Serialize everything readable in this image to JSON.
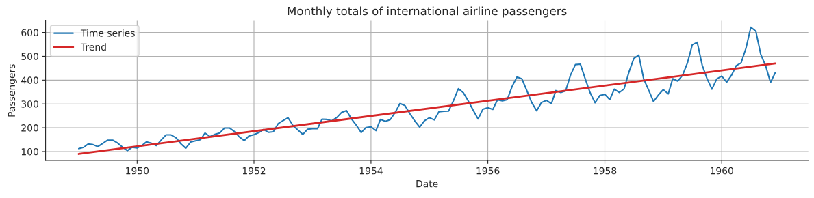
{
  "chart_data": {
    "type": "line",
    "title": "Monthly totals of international airline passengers",
    "xlabel": "Date",
    "ylabel": "Passengers",
    "x": [
      "1949-01",
      "1949-02",
      "1949-03",
      "1949-04",
      "1949-05",
      "1949-06",
      "1949-07",
      "1949-08",
      "1949-09",
      "1949-10",
      "1949-11",
      "1949-12",
      "1950-01",
      "1950-02",
      "1950-03",
      "1950-04",
      "1950-05",
      "1950-06",
      "1950-07",
      "1950-08",
      "1950-09",
      "1950-10",
      "1950-11",
      "1950-12",
      "1951-01",
      "1951-02",
      "1951-03",
      "1951-04",
      "1951-05",
      "1951-06",
      "1951-07",
      "1951-08",
      "1951-09",
      "1951-10",
      "1951-11",
      "1951-12",
      "1952-01",
      "1952-02",
      "1952-03",
      "1952-04",
      "1952-05",
      "1952-06",
      "1952-07",
      "1952-08",
      "1952-09",
      "1952-10",
      "1952-11",
      "1952-12",
      "1953-01",
      "1953-02",
      "1953-03",
      "1953-04",
      "1953-05",
      "1953-06",
      "1953-07",
      "1953-08",
      "1953-09",
      "1953-10",
      "1953-11",
      "1953-12",
      "1954-01",
      "1954-02",
      "1954-03",
      "1954-04",
      "1954-05",
      "1954-06",
      "1954-07",
      "1954-08",
      "1954-09",
      "1954-10",
      "1954-11",
      "1954-12",
      "1955-01",
      "1955-02",
      "1955-03",
      "1955-04",
      "1955-05",
      "1955-06",
      "1955-07",
      "1955-08",
      "1955-09",
      "1955-10",
      "1955-11",
      "1955-12",
      "1956-01",
      "1956-02",
      "1956-03",
      "1956-04",
      "1956-05",
      "1956-06",
      "1956-07",
      "1956-08",
      "1956-09",
      "1956-10",
      "1956-11",
      "1956-12",
      "1957-01",
      "1957-02",
      "1957-03",
      "1957-04",
      "1957-05",
      "1957-06",
      "1957-07",
      "1957-08",
      "1957-09",
      "1957-10",
      "1957-11",
      "1957-12",
      "1958-01",
      "1958-02",
      "1958-03",
      "1958-04",
      "1958-05",
      "1958-06",
      "1958-07",
      "1958-08",
      "1958-09",
      "1958-10",
      "1958-11",
      "1958-12",
      "1959-01",
      "1959-02",
      "1959-03",
      "1959-04",
      "1959-05",
      "1959-06",
      "1959-07",
      "1959-08",
      "1959-09",
      "1959-10",
      "1959-11",
      "1959-12",
      "1960-01",
      "1960-02",
      "1960-03",
      "1960-04",
      "1960-05",
      "1960-06",
      "1960-07",
      "1960-08",
      "1960-09",
      "1960-10",
      "1960-11",
      "1960-12"
    ],
    "series": [
      {
        "name": "Time series",
        "color": "#1f77b4",
        "values": [
          112,
          118,
          132,
          129,
          121,
          135,
          148,
          148,
          136,
          119,
          104,
          118,
          115,
          126,
          141,
          135,
          125,
          149,
          170,
          170,
          158,
          133,
          114,
          140,
          145,
          150,
          178,
          163,
          172,
          178,
          199,
          199,
          184,
          162,
          146,
          166,
          171,
          180,
          193,
          181,
          183,
          218,
          230,
          242,
          209,
          191,
          172,
          194,
          196,
          196,
          236,
          235,
          229,
          243,
          264,
          272,
          237,
          211,
          180,
          201,
          204,
          188,
          235,
          227,
          234,
          264,
          302,
          293,
          259,
          229,
          203,
          229,
          242,
          233,
          267,
          269,
          270,
          315,
          364,
          347,
          312,
          274,
          237,
          278,
          284,
          277,
          317,
          313,
          318,
          374,
          413,
          405,
          355,
          306,
          271,
          306,
          315,
          301,
          356,
          348,
          355,
          422,
          465,
          467,
          404,
          347,
          305,
          336,
          340,
          318,
          362,
          348,
          363,
          435,
          491,
          505,
          404,
          359,
          310,
          337,
          360,
          342,
          406,
          396,
          420,
          472,
          548,
          559,
          463,
          407,
          362,
          405,
          417,
          391,
          419,
          461,
          472,
          535,
          622,
          606,
          508,
          461,
          390,
          432
        ]
      },
      {
        "name": "Trend",
        "color": "#d62728",
        "type": "line",
        "x": [
          "1949-01",
          "1960-12"
        ],
        "values": [
          90,
          470
        ]
      }
    ],
    "xlim": [
      "1948-06-08",
      "1961-06-25"
    ],
    "ylim": [
      63,
      649
    ],
    "xticks": [
      {
        "value": "1950-01-01",
        "label": "1950"
      },
      {
        "value": "1952-01-01",
        "label": "1952"
      },
      {
        "value": "1954-01-01",
        "label": "1954"
      },
      {
        "value": "1956-01-01",
        "label": "1956"
      },
      {
        "value": "1958-01-01",
        "label": "1958"
      },
      {
        "value": "1960-01-01",
        "label": "1960"
      }
    ],
    "yticks": [
      100,
      200,
      300,
      400,
      500,
      600
    ],
    "grid": true,
    "legend": "top left"
  }
}
